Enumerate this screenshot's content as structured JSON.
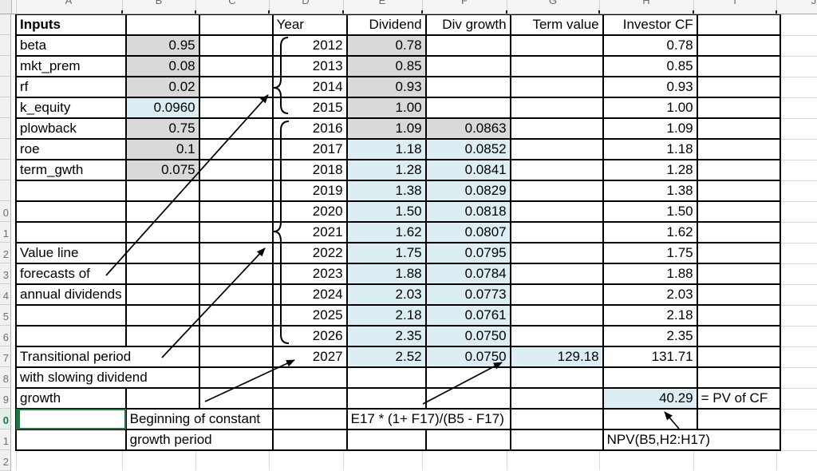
{
  "sheet": {
    "name": "dividend-discount-model-spreadsheet",
    "column_letters": [
      "A",
      "B",
      "C",
      "D",
      "E",
      "F",
      "G",
      "H",
      "I",
      "J"
    ],
    "gutter_digits": [
      "",
      "",
      "",
      "",
      "",
      "",
      "",
      "",
      "",
      "0",
      "1",
      "2",
      "3",
      "4",
      "5",
      "6",
      "7",
      "8",
      "9",
      "0",
      "1",
      "2"
    ],
    "selected_cell": "A20",
    "colors": {
      "gray_fill": "#d9d9d9",
      "blue_fill": "#dcedf4",
      "selection_green": "#217346"
    },
    "headers": {
      "inputs": "Inputs",
      "year": "Year",
      "dividend": "Dividend",
      "div_growth": "Div growth",
      "term_value": "Term value",
      "investor_cf": "Investor CF"
    },
    "rows": [
      {
        "n": 1,
        "cells": [
          {
            "c": 0,
            "t": "Inputs",
            "a": "l",
            "b": true
          },
          {
            "c": 3,
            "t": "Year",
            "a": "l"
          },
          {
            "c": 4,
            "t": "Dividend"
          },
          {
            "c": 5,
            "t": "Div growth"
          },
          {
            "c": 6,
            "t": "Term value"
          },
          {
            "c": 7,
            "t": "Investor CF"
          }
        ]
      },
      {
        "n": 2,
        "cells": [
          {
            "c": 0,
            "t": "beta",
            "a": "l"
          },
          {
            "c": 1,
            "t": "0.95",
            "f": "g"
          },
          {
            "c": 3,
            "t": "2012"
          },
          {
            "c": 4,
            "t": "0.78",
            "f": "g"
          },
          {
            "c": 7,
            "t": "0.78"
          }
        ]
      },
      {
        "n": 3,
        "cells": [
          {
            "c": 0,
            "t": "mkt_prem",
            "a": "l"
          },
          {
            "c": 1,
            "t": "0.08",
            "f": "g"
          },
          {
            "c": 3,
            "t": "2013"
          },
          {
            "c": 4,
            "t": "0.85",
            "f": "g"
          },
          {
            "c": 7,
            "t": "0.85"
          }
        ]
      },
      {
        "n": 4,
        "cells": [
          {
            "c": 0,
            "t": "rf",
            "a": "l"
          },
          {
            "c": 1,
            "t": "0.02",
            "f": "g"
          },
          {
            "c": 3,
            "t": "2014"
          },
          {
            "c": 4,
            "t": "0.93",
            "f": "g"
          },
          {
            "c": 7,
            "t": "0.93"
          }
        ]
      },
      {
        "n": 5,
        "cells": [
          {
            "c": 0,
            "t": "k_equity",
            "a": "l"
          },
          {
            "c": 1,
            "t": "0.0960",
            "f": "b"
          },
          {
            "c": 3,
            "t": "2015"
          },
          {
            "c": 4,
            "t": "1.00",
            "f": "g"
          },
          {
            "c": 7,
            "t": "1.00"
          }
        ]
      },
      {
        "n": 6,
        "cells": [
          {
            "c": 0,
            "t": "plowback",
            "a": "l"
          },
          {
            "c": 1,
            "t": "0.75",
            "f": "g"
          },
          {
            "c": 3,
            "t": "2016"
          },
          {
            "c": 4,
            "t": "1.09",
            "f": "g"
          },
          {
            "c": 5,
            "t": "0.0863",
            "f": "g"
          },
          {
            "c": 7,
            "t": "1.09"
          }
        ]
      },
      {
        "n": 7,
        "cells": [
          {
            "c": 0,
            "t": "roe",
            "a": "l"
          },
          {
            "c": 1,
            "t": "0.1",
            "f": "g"
          },
          {
            "c": 3,
            "t": "2017"
          },
          {
            "c": 4,
            "t": "1.18",
            "f": "b"
          },
          {
            "c": 5,
            "t": "0.0852",
            "f": "b"
          },
          {
            "c": 7,
            "t": "1.18"
          }
        ]
      },
      {
        "n": 8,
        "cells": [
          {
            "c": 0,
            "t": "term_gwth",
            "a": "l"
          },
          {
            "c": 1,
            "t": "0.075",
            "f": "g"
          },
          {
            "c": 3,
            "t": "2018"
          },
          {
            "c": 4,
            "t": "1.28",
            "f": "b"
          },
          {
            "c": 5,
            "t": "0.0841",
            "f": "b"
          },
          {
            "c": 7,
            "t": "1.28"
          }
        ]
      },
      {
        "n": 9,
        "cells": [
          {
            "c": 3,
            "t": "2019"
          },
          {
            "c": 4,
            "t": "1.38",
            "f": "b"
          },
          {
            "c": 5,
            "t": "0.0829",
            "f": "b"
          },
          {
            "c": 7,
            "t": "1.38"
          }
        ]
      },
      {
        "n": 10,
        "cells": [
          {
            "c": 3,
            "t": "2020"
          },
          {
            "c": 4,
            "t": "1.50",
            "f": "b"
          },
          {
            "c": 5,
            "t": "0.0818",
            "f": "b"
          },
          {
            "c": 7,
            "t": "1.50"
          }
        ]
      },
      {
        "n": 11,
        "cells": [
          {
            "c": 3,
            "t": "2021"
          },
          {
            "c": 4,
            "t": "1.62",
            "f": "b"
          },
          {
            "c": 5,
            "t": "0.0807",
            "f": "b"
          },
          {
            "c": 7,
            "t": "1.62"
          }
        ]
      },
      {
        "n": 12,
        "cells": [
          {
            "c": 0,
            "t": "Value line",
            "a": "l"
          },
          {
            "c": 3,
            "t": "2022"
          },
          {
            "c": 4,
            "t": "1.75",
            "f": "b"
          },
          {
            "c": 5,
            "t": "0.0795",
            "f": "b"
          },
          {
            "c": 7,
            "t": "1.75"
          }
        ]
      },
      {
        "n": 13,
        "cells": [
          {
            "c": 0,
            "t": "forecasts of",
            "a": "l"
          },
          {
            "c": 3,
            "t": "2023"
          },
          {
            "c": 4,
            "t": "1.88",
            "f": "b"
          },
          {
            "c": 5,
            "t": "0.0784",
            "f": "b"
          },
          {
            "c": 7,
            "t": "1.88"
          }
        ]
      },
      {
        "n": 14,
        "cells": [
          {
            "c": 0,
            "t": "annual dividends",
            "a": "l"
          },
          {
            "c": 3,
            "t": "2024"
          },
          {
            "c": 4,
            "t": "2.03",
            "f": "b"
          },
          {
            "c": 5,
            "t": "0.0773",
            "f": "b"
          },
          {
            "c": 7,
            "t": "2.03"
          }
        ]
      },
      {
        "n": 15,
        "cells": [
          {
            "c": 3,
            "t": "2025"
          },
          {
            "c": 4,
            "t": "2.18",
            "f": "b"
          },
          {
            "c": 5,
            "t": "0.0761",
            "f": "b"
          },
          {
            "c": 7,
            "t": "2.18"
          }
        ]
      },
      {
        "n": 16,
        "cells": [
          {
            "c": 3,
            "t": "2026"
          },
          {
            "c": 4,
            "t": "2.35",
            "f": "b"
          },
          {
            "c": 5,
            "t": "0.0750",
            "f": "b"
          },
          {
            "c": 7,
            "t": "2.35"
          }
        ]
      },
      {
        "n": 17,
        "cells": [
          {
            "c": 0,
            "s": 2,
            "t": "Transitional period",
            "a": "l"
          },
          {
            "c": 3,
            "t": "2027"
          },
          {
            "c": 4,
            "t": "2.52",
            "f": "b"
          },
          {
            "c": 5,
            "t": "0.0750",
            "f": "b"
          },
          {
            "c": 6,
            "t": "129.18",
            "f": "b"
          },
          {
            "c": 7,
            "t": "131.71"
          }
        ]
      },
      {
        "n": 18,
        "cells": [
          {
            "c": 0,
            "s": 2,
            "t": "with slowing dividend",
            "a": "l"
          }
        ]
      },
      {
        "n": 19,
        "cells": [
          {
            "c": 0,
            "t": "growth",
            "a": "l"
          },
          {
            "c": 7,
            "t": "40.29",
            "f": "b"
          },
          {
            "c": 8,
            "t": "= PV of CF",
            "a": "l"
          }
        ]
      },
      {
        "n": 20,
        "cells": [
          {
            "c": 0,
            "t": "",
            "sel": true
          },
          {
            "c": 1,
            "s": 2,
            "t": "Beginning of constant",
            "a": "l"
          },
          {
            "c": 4,
            "s": 2,
            "t": "E17 * (1+ F17)/(B5 - F17)",
            "a": "l"
          }
        ]
      },
      {
        "n": 21,
        "cells": [
          {
            "c": 1,
            "s": 2,
            "t": "growth period",
            "a": "l"
          },
          {
            "c": 7,
            "s": 2,
            "t": "NPV(B5,H2:H17)",
            "a": "l"
          }
        ]
      }
    ]
  },
  "annotations": {
    "brace_historical_years": "2012-2015 group brace",
    "brace_forecast_years": "2016-2026 group brace",
    "arrow_labels": [
      "Value line forecasts of annual dividends",
      "Transitional period with slowing dividend growth",
      "Beginning of constant growth period",
      "Terminal value formula",
      "NPV formula"
    ]
  }
}
